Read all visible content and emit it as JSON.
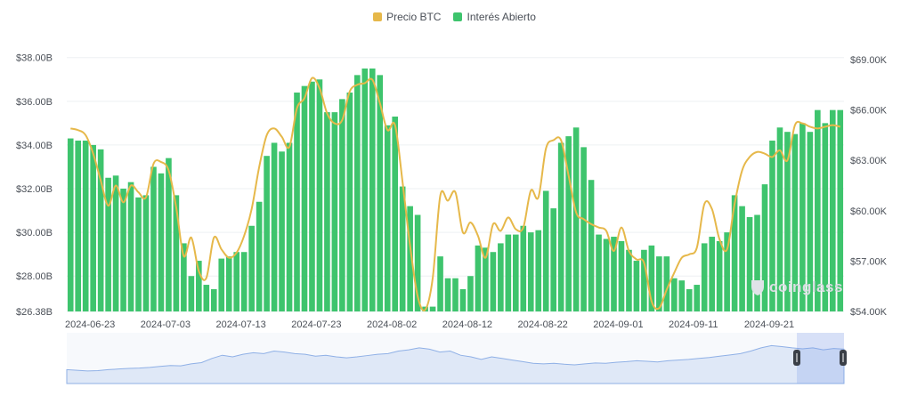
{
  "chart_data": {
    "type": "bar",
    "legend_position": "top-center",
    "grid": true,
    "title": "",
    "series": [
      {
        "name": "Interés Abierto",
        "type": "bar",
        "axis": "left",
        "color": "#3ec46d"
      },
      {
        "name": "Precio BTC",
        "type": "line",
        "axis": "right",
        "color": "#e6b84a"
      }
    ],
    "y_left_ticks": [
      "$38.00B",
      "$36.00B",
      "$34.00B",
      "$32.00B",
      "$30.00B",
      "$28.00B",
      "$26.38B"
    ],
    "y_right_ticks": [
      "$69.00K",
      "$66.00K",
      "$63.00K",
      "$60.00K",
      "$57.00K",
      "$54.00K"
    ],
    "y_left_range": [
      26.38,
      38.6
    ],
    "y_right_range": [
      54.0,
      69.9
    ],
    "x_ticks": [
      "2024-06-23",
      "2024-07-03",
      "2024-07-13",
      "2024-07-23",
      "2024-08-02",
      "2024-08-12",
      "2024-08-22",
      "2024-09-01",
      "2024-09-11",
      "2024-09-21"
    ],
    "open_interest_billions": [
      34.3,
      34.2,
      34.2,
      34.0,
      33.8,
      32.5,
      32.6,
      32.0,
      32.3,
      31.6,
      31.7,
      33.0,
      32.7,
      33.4,
      31.7,
      29.5,
      28.0,
      28.7,
      27.6,
      27.4,
      28.8,
      28.9,
      29.1,
      29.1,
      30.3,
      31.4,
      33.5,
      34.1,
      33.7,
      34.1,
      36.4,
      36.7,
      36.9,
      37.0,
      35.5,
      35.5,
      36.1,
      36.4,
      37.2,
      37.5,
      37.5,
      37.2,
      34.9,
      35.3,
      32.1,
      31.2,
      30.8,
      26.6,
      26.6,
      28.9,
      27.9,
      27.9,
      27.4,
      28.0,
      29.4,
      29.3,
      29.1,
      29.5,
      29.9,
      29.9,
      30.3,
      30.0,
      30.1,
      31.9,
      31.1,
      34.1,
      34.4,
      34.8,
      33.9,
      32.4,
      29.9,
      29.7,
      29.8,
      29.6,
      29.2,
      28.7,
      29.2,
      29.4,
      28.9,
      28.9,
      27.9,
      27.8,
      27.4,
      27.6,
      29.5,
      29.8,
      29.6,
      30.0,
      31.7,
      31.2,
      30.7,
      30.8,
      32.2,
      34.2,
      34.8,
      34.6,
      34.5,
      35.0,
      34.6,
      35.6,
      35.0,
      35.6,
      35.6
    ],
    "price_btc_thousands": [
      64.9,
      64.8,
      64.5,
      63.4,
      61.8,
      60.3,
      61.5,
      60.5,
      61.5,
      61.1,
      60.8,
      62.8,
      62.9,
      62.4,
      60.2,
      57.3,
      58.4,
      56.4,
      56.0,
      58.4,
      57.7,
      57.2,
      57.5,
      58.5,
      60.1,
      62.6,
      64.5,
      64.9,
      64.4,
      63.8,
      66.1,
      66.7,
      67.9,
      67.3,
      65.8,
      65.2,
      65.4,
      67.1,
      67.5,
      67.6,
      67.8,
      66.4,
      64.8,
      65.1,
      61.7,
      57.9,
      54.9,
      54.1,
      56.0,
      60.9,
      60.6,
      61.1,
      58.7,
      59.3,
      58.5,
      57.2,
      59.2,
      58.8,
      59.6,
      58.9,
      59.0,
      61.2,
      60.8,
      63.7,
      64.2,
      64.2,
      62.1,
      59.9,
      59.5,
      59.2,
      59.0,
      58.8,
      57.6,
      59.0,
      57.6,
      57.1,
      56.9,
      54.6,
      54.2,
      55.3,
      56.3,
      57.2,
      57.4,
      57.8,
      60.4,
      60.1,
      58.3,
      57.7,
      60.4,
      62.4,
      63.2,
      63.5,
      63.4,
      63.2,
      63.6,
      63.0,
      65.1,
      65.2,
      65.0,
      64.9,
      65.0,
      65.1,
      65.0
    ],
    "navigator_series": [
      0.1,
      0.08,
      0.06,
      0.07,
      0.1,
      0.12,
      0.14,
      0.15,
      0.17,
      0.2,
      0.23,
      0.22,
      0.28,
      0.32,
      0.45,
      0.55,
      0.5,
      0.58,
      0.63,
      0.6,
      0.68,
      0.65,
      0.6,
      0.58,
      0.52,
      0.55,
      0.5,
      0.47,
      0.5,
      0.54,
      0.58,
      0.6,
      0.68,
      0.72,
      0.78,
      0.74,
      0.65,
      0.68,
      0.55,
      0.5,
      0.42,
      0.5,
      0.45,
      0.4,
      0.35,
      0.3,
      0.28,
      0.3,
      0.27,
      0.25,
      0.28,
      0.31,
      0.3,
      0.33,
      0.35,
      0.38,
      0.36,
      0.34,
      0.38,
      0.4,
      0.42,
      0.45,
      0.48,
      0.52,
      0.56,
      0.6,
      0.68,
      0.78,
      0.85,
      0.82,
      0.78,
      0.75,
      0.78,
      0.72,
      0.76,
      0.74
    ]
  },
  "navigator": {
    "left_handle_label": "navigator-left-handle",
    "right_handle_label": "navigator-right-handle"
  },
  "watermark": "coinglass"
}
